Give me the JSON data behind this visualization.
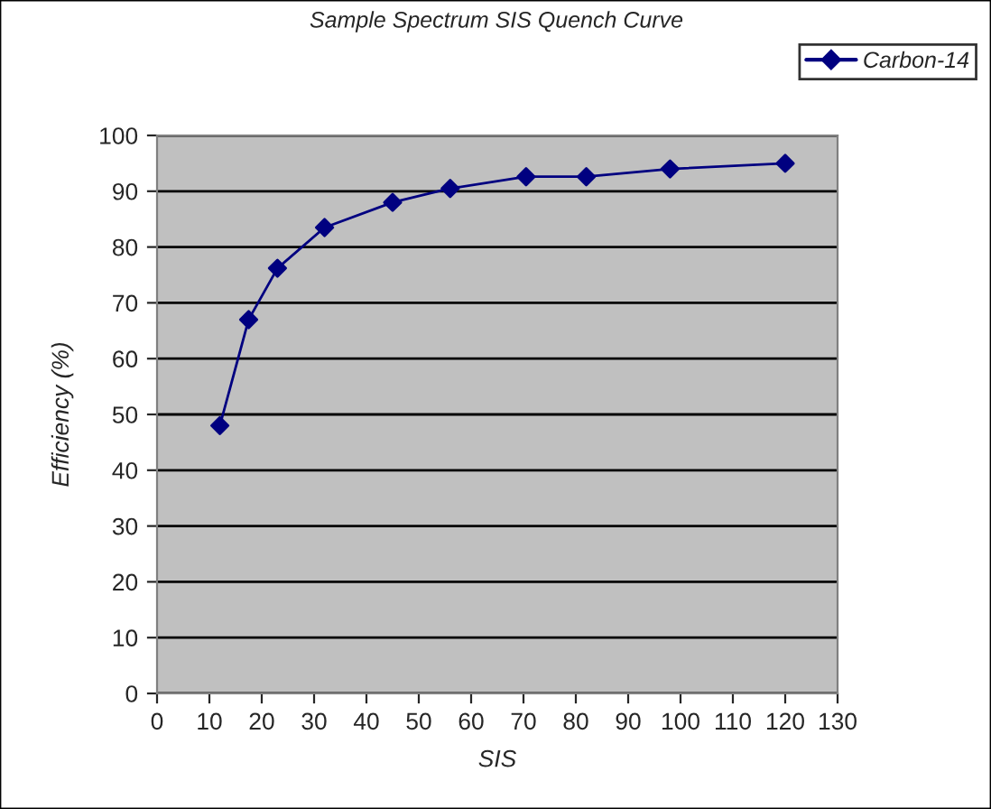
{
  "chart_data": {
    "type": "line",
    "title": "Sample Spectrum SIS Quench Curve",
    "xlabel": "SIS",
    "ylabel": "Efficiency (%)",
    "series": [
      {
        "name": "Carbon-14",
        "color": "#000080",
        "x": [
          12,
          17.5,
          23,
          32,
          45,
          56,
          70.5,
          82,
          98,
          120
        ],
        "values": [
          48,
          67,
          76.2,
          83.5,
          88,
          90.5,
          92.6,
          92.6,
          94,
          95
        ]
      }
    ],
    "xlim": [
      0,
      130
    ],
    "xticks": [
      0,
      10,
      20,
      30,
      40,
      50,
      60,
      70,
      80,
      90,
      100,
      110,
      120,
      130
    ],
    "ylim": [
      0,
      100
    ],
    "yticks": [
      0,
      10,
      20,
      30,
      40,
      50,
      60,
      70,
      80,
      90,
      100
    ],
    "grid": "y",
    "legend": "top right",
    "marker": "diamond",
    "line_style": "solid"
  }
}
